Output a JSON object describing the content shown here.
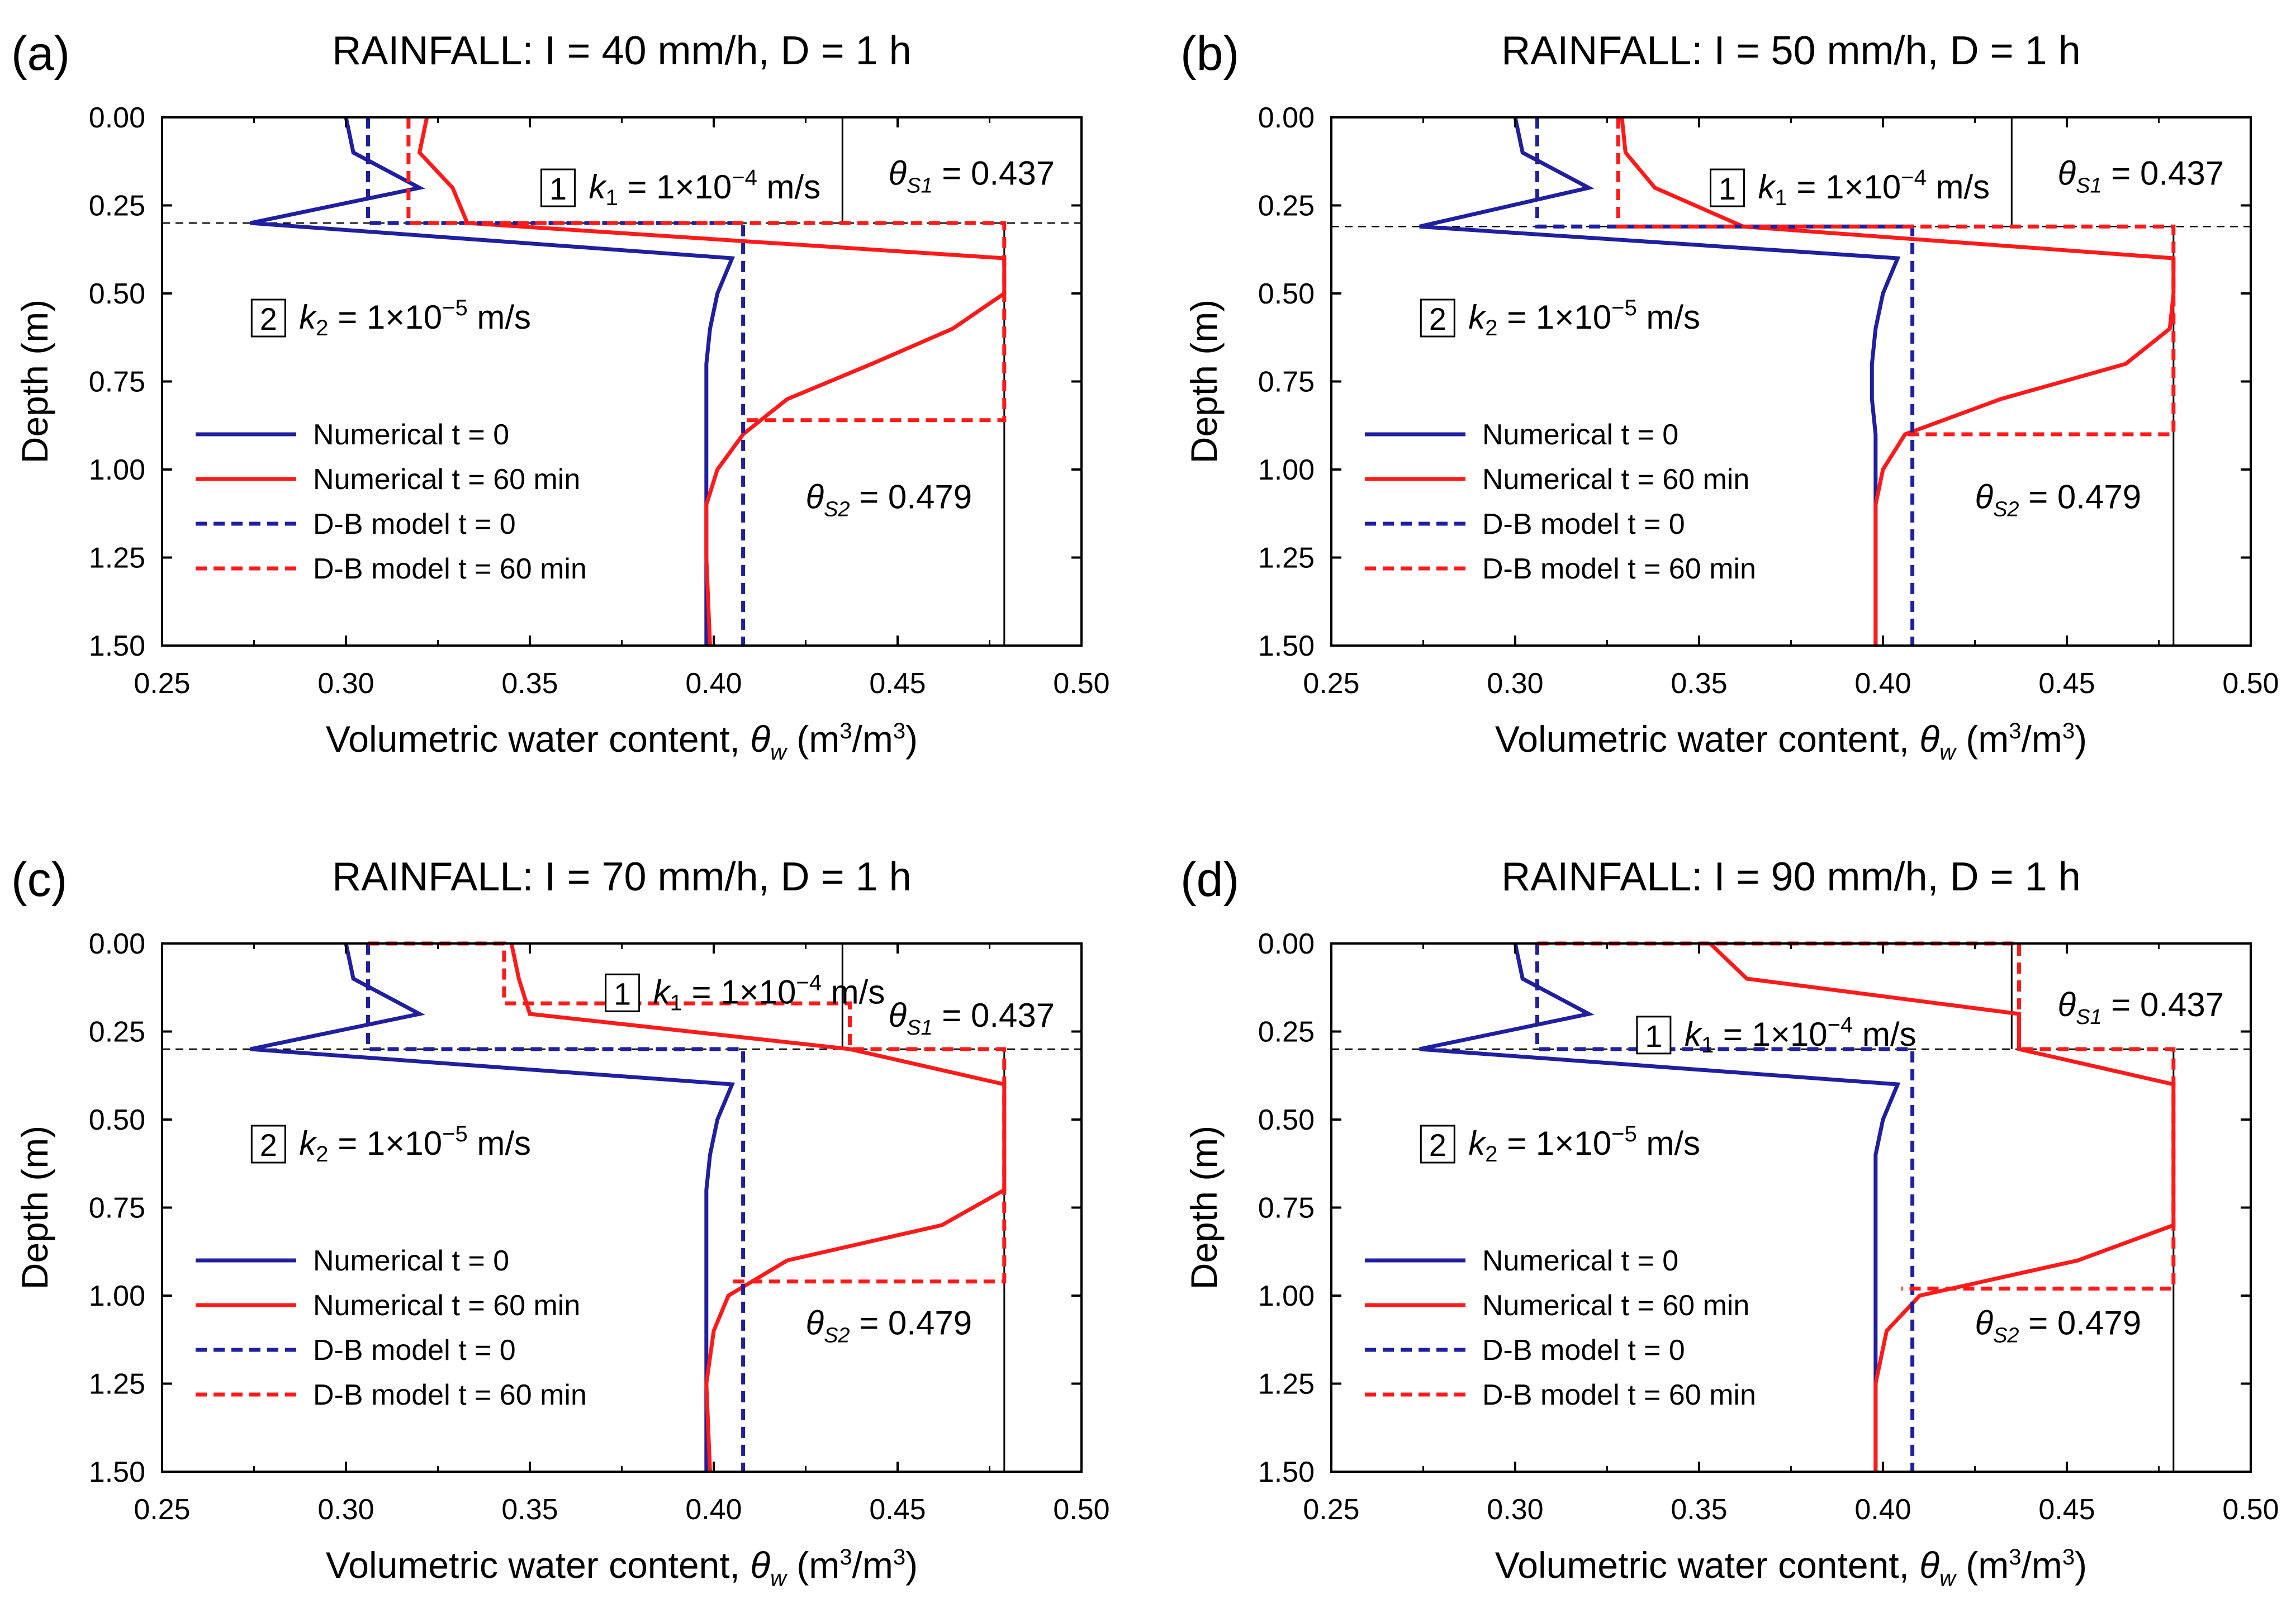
{
  "figure": {
    "axis_labels": {
      "ylabel": "Depth (m)",
      "xlabel_main": "Volumetric water content, ",
      "xlabel_symbol": "θ",
      "xlabel_sub": "w",
      "xlabel_units": " (m",
      "xlabel_sup1": "3",
      "xlabel_mid": "/m",
      "xlabel_sup2": "3",
      "xlabel_end": ")"
    },
    "legend": [
      {
        "label": "Numerical t = 0",
        "color": "#1f1fa0",
        "dash": "solid"
      },
      {
        "label": "Numerical t = 60 min",
        "color": "#ff1a1a",
        "dash": "solid"
      },
      {
        "label": "D-B model t = 0",
        "color": "#1f1fa0",
        "dash": "dashed"
      },
      {
        "label": "D-B model t = 60 min",
        "color": "#ff1a1a",
        "dash": "dashed"
      }
    ],
    "annotations": {
      "layer1_num": "1",
      "layer1_sym": "k",
      "layer1_sub": "1",
      "layer1_pre": " = 1×10",
      "layer1_exp": "−4",
      "layer1_post": " m/s",
      "layer2_num": "2",
      "layer2_sym": "k",
      "layer2_sub": "2",
      "layer2_pre": " = 1×10",
      "layer2_exp": "−5",
      "layer2_post": " m/s",
      "theta_sym": "θ",
      "theta_s1_sub": "S1",
      "theta_s1_val": " = 0.437",
      "theta_s2_sub": "S2",
      "theta_s2_val": " = 0.479"
    }
  },
  "chart_data": [
    {
      "type": "line",
      "panel": "(a)",
      "title": "RAINFALL: I = 40 mm/h, D = 1 h",
      "xlabel": "Volumetric water content, θw (m3/m3)",
      "ylabel": "Depth (m)",
      "xlim": [
        0.25,
        0.5
      ],
      "ylim": [
        1.5,
        0.0
      ],
      "xticks": [
        "0.25",
        "0.30",
        "0.35",
        "0.40",
        "0.45",
        "0.50"
      ],
      "yticks": [
        "0.00",
        "0.25",
        "0.50",
        "0.75",
        "1.00",
        "1.25",
        "1.50"
      ],
      "layer_boundary_depth": 0.3,
      "theta_s1": 0.437,
      "theta_s2": 0.479,
      "series": [
        {
          "name": "Numerical t = 0",
          "x": [
            0.3,
            0.302,
            0.32,
            0.274,
            0.405,
            0.401,
            0.399,
            0.398,
            0.398,
            0.398,
            0.398,
            0.398,
            0.398
          ],
          "y": [
            0.0,
            0.1,
            0.2,
            0.3,
            0.4,
            0.5,
            0.6,
            0.7,
            0.8,
            0.9,
            1.0,
            1.25,
            1.5
          ]
        },
        {
          "name": "Numerical t = 60 min",
          "x": [
            0.322,
            0.32,
            0.329,
            0.333,
            0.479,
            0.479,
            0.465,
            0.443,
            0.42,
            0.408,
            0.401,
            0.398,
            0.398,
            0.399
          ],
          "y": [
            0.0,
            0.1,
            0.2,
            0.3,
            0.4,
            0.5,
            0.6,
            0.7,
            0.8,
            0.9,
            1.0,
            1.1,
            1.25,
            1.5
          ]
        },
        {
          "name": "D-B model t = 0",
          "x": [
            0.306,
            0.306,
            0.408,
            0.408
          ],
          "y": [
            0.0,
            0.3,
            0.3,
            1.5
          ]
        },
        {
          "name": "D-B model t = 60 min",
          "x": [
            0.317,
            0.317,
            0.479,
            0.479,
            0.408
          ],
          "y": [
            0.0,
            0.3,
            0.3,
            0.86,
            0.86
          ]
        }
      ]
    },
    {
      "type": "line",
      "panel": "(b)",
      "title": "RAINFALL: I = 50 mm/h, D = 1 h",
      "xlabel": "Volumetric water content, θw (m3/m3)",
      "ylabel": "Depth (m)",
      "xlim": [
        0.25,
        0.5
      ],
      "ylim": [
        1.5,
        0.0
      ],
      "xticks": [
        "0.25",
        "0.30",
        "0.35",
        "0.40",
        "0.45",
        "0.50"
      ],
      "yticks": [
        "0.00",
        "0.25",
        "0.50",
        "0.75",
        "1.00",
        "1.25",
        "1.50"
      ],
      "layer_boundary_depth": 0.31,
      "theta_s1": 0.437,
      "theta_s2": 0.479,
      "series": [
        {
          "name": "Numerical t = 0",
          "x": [
            0.3,
            0.302,
            0.32,
            0.274,
            0.404,
            0.4,
            0.398,
            0.397,
            0.397,
            0.398,
            0.398,
            0.398,
            0.398
          ],
          "y": [
            0.0,
            0.1,
            0.2,
            0.31,
            0.4,
            0.5,
            0.6,
            0.7,
            0.8,
            0.9,
            1.0,
            1.25,
            1.5
          ]
        },
        {
          "name": "Numerical t = 60 min",
          "x": [
            0.329,
            0.33,
            0.338,
            0.362,
            0.479,
            0.479,
            0.478,
            0.466,
            0.432,
            0.406,
            0.4,
            0.398,
            0.398,
            0.398
          ],
          "y": [
            0.0,
            0.1,
            0.2,
            0.31,
            0.4,
            0.5,
            0.6,
            0.7,
            0.8,
            0.9,
            1.0,
            1.1,
            1.25,
            1.5
          ]
        },
        {
          "name": "D-B model t = 0",
          "x": [
            0.306,
            0.306,
            0.408,
            0.408
          ],
          "y": [
            0.0,
            0.31,
            0.31,
            1.5
          ]
        },
        {
          "name": "D-B model t = 60 min",
          "x": [
            0.328,
            0.328,
            0.479,
            0.479,
            0.406
          ],
          "y": [
            0.0,
            0.31,
            0.31,
            0.9,
            0.9
          ]
        }
      ]
    },
    {
      "type": "line",
      "panel": "(c)",
      "title": "RAINFALL: I = 70 mm/h, D = 1 h",
      "xlabel": "Volumetric water content, θw (m3/m3)",
      "ylabel": "Depth (m)",
      "xlim": [
        0.25,
        0.5
      ],
      "ylim": [
        1.5,
        0.0
      ],
      "xticks": [
        "0.25",
        "0.30",
        "0.35",
        "0.40",
        "0.45",
        "0.50"
      ],
      "yticks": [
        "0.00",
        "0.25",
        "0.50",
        "0.75",
        "1.00",
        "1.25",
        "1.50"
      ],
      "layer_boundary_depth": 0.3,
      "theta_s1": 0.437,
      "theta_s2": 0.479,
      "series": [
        {
          "name": "Numerical t = 0",
          "x": [
            0.3,
            0.302,
            0.32,
            0.274,
            0.405,
            0.401,
            0.399,
            0.398,
            0.398,
            0.398,
            0.398,
            0.398,
            0.398
          ],
          "y": [
            0.0,
            0.1,
            0.2,
            0.3,
            0.4,
            0.5,
            0.6,
            0.7,
            0.8,
            0.9,
            1.0,
            1.25,
            1.5
          ]
        },
        {
          "name": "Numerical t = 60 min",
          "x": [
            0.345,
            0.347,
            0.35,
            0.437,
            0.479,
            0.479,
            0.479,
            0.479,
            0.462,
            0.42,
            0.404,
            0.4,
            0.398,
            0.399
          ],
          "y": [
            0.0,
            0.1,
            0.2,
            0.3,
            0.4,
            0.5,
            0.6,
            0.7,
            0.8,
            0.9,
            1.0,
            1.1,
            1.25,
            1.5
          ]
        },
        {
          "name": "D-B model t = 0",
          "x": [
            0.306,
            0.306,
            0.408,
            0.408
          ],
          "y": [
            0.0,
            0.3,
            0.3,
            1.5
          ]
        },
        {
          "name": "D-B model t = 60 min",
          "x": [
            0.306,
            0.343,
            0.343,
            0.437,
            0.437,
            0.479,
            0.479,
            0.404
          ],
          "y": [
            0.0,
            0.0,
            0.17,
            0.17,
            0.3,
            0.3,
            0.96,
            0.96
          ]
        }
      ]
    },
    {
      "type": "line",
      "panel": "(d)",
      "title": "RAINFALL: I = 90 mm/h, D = 1 h",
      "xlabel": "Volumetric water content, θw (m3/m3)",
      "ylabel": "Depth (m)",
      "xlim": [
        0.25,
        0.5
      ],
      "ylim": [
        1.5,
        0.0
      ],
      "xticks": [
        "0.25",
        "0.30",
        "0.35",
        "0.40",
        "0.45",
        "0.50"
      ],
      "yticks": [
        "0.00",
        "0.25",
        "0.50",
        "0.75",
        "1.00",
        "1.25",
        "1.50"
      ],
      "layer_boundary_depth": 0.3,
      "theta_s1": 0.437,
      "theta_s2": 0.479,
      "series": [
        {
          "name": "Numerical t = 0",
          "x": [
            0.3,
            0.302,
            0.32,
            0.274,
            0.404,
            0.4,
            0.398,
            0.398,
            0.398,
            0.398,
            0.398,
            0.398,
            0.398
          ],
          "y": [
            0.0,
            0.1,
            0.2,
            0.3,
            0.4,
            0.5,
            0.6,
            0.7,
            0.8,
            0.9,
            1.0,
            1.25,
            1.5
          ]
        },
        {
          "name": "Numerical t = 60 min",
          "x": [
            0.353,
            0.363,
            0.437,
            0.437,
            0.479,
            0.479,
            0.479,
            0.479,
            0.479,
            0.453,
            0.41,
            0.401,
            0.398,
            0.398
          ],
          "y": [
            0.0,
            0.1,
            0.2,
            0.3,
            0.4,
            0.5,
            0.6,
            0.7,
            0.8,
            0.9,
            1.0,
            1.1,
            1.25,
            1.5
          ]
        },
        {
          "name": "D-B model t = 0",
          "x": [
            0.306,
            0.306,
            0.408,
            0.408
          ],
          "y": [
            0.0,
            0.3,
            0.3,
            1.5
          ]
        },
        {
          "name": "D-B model t = 60 min",
          "x": [
            0.306,
            0.437,
            0.437,
            0.479,
            0.479,
            0.405
          ],
          "y": [
            0.0,
            0.0,
            0.3,
            0.3,
            0.98,
            0.98
          ]
        }
      ]
    }
  ]
}
